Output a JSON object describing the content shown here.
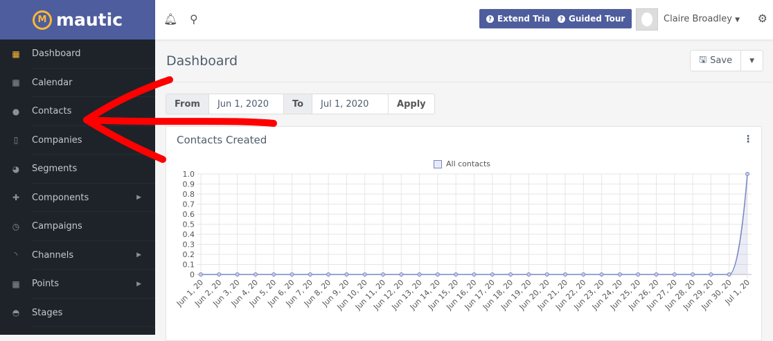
{
  "brand": {
    "name": "mautic"
  },
  "sidebar": {
    "items": [
      {
        "label": "Dashboard",
        "icon": "grid-icon",
        "glyph": "▦",
        "active": true
      },
      {
        "label": "Calendar",
        "icon": "calendar-icon",
        "glyph": "▦"
      },
      {
        "label": "Contacts",
        "icon": "user-icon",
        "glyph": "●"
      },
      {
        "label": "Companies",
        "icon": "building-icon",
        "glyph": "▯"
      },
      {
        "label": "Segments",
        "icon": "pie-chart-icon",
        "glyph": "◕"
      },
      {
        "label": "Components",
        "icon": "puzzle-icon",
        "glyph": "✚",
        "submenu": true
      },
      {
        "label": "Campaigns",
        "icon": "clock-icon",
        "glyph": "◷"
      },
      {
        "label": "Channels",
        "icon": "rss-icon",
        "glyph": "◝"
      },
      {
        "label": "Points",
        "icon": "calculator-icon",
        "glyph": "▦",
        "submenu": true
      },
      {
        "label": "Stages",
        "icon": "tachometer-icon",
        "glyph": "◓"
      }
    ]
  },
  "topbar": {
    "extend_trial": "Extend Trial",
    "guided_tour": "Guided Tour",
    "user_name": "Claire Broadley"
  },
  "page": {
    "title": "Dashboard",
    "save": "Save"
  },
  "filter": {
    "from_label": "From",
    "from_value": "Jun 1, 2020",
    "to_label": "To",
    "to_value": "Jul 1, 2020",
    "apply": "Apply"
  },
  "colors": {
    "accent": "#4e5d9d",
    "logo": "#fdb933",
    "sidebar": "#1e232a",
    "annotation": "#ff0000"
  },
  "chart_data": {
    "type": "line",
    "title": "Contacts Created",
    "legend": [
      "All contacts"
    ],
    "categories": [
      "Jun 1, 20",
      "Jun 2, 20",
      "Jun 3, 20",
      "Jun 4, 20",
      "Jun 5, 20",
      "Jun 6, 20",
      "Jun 7, 20",
      "Jun 8, 20",
      "Jun 9, 20",
      "Jun 10, 20",
      "Jun 11, 20",
      "Jun 12, 20",
      "Jun 13, 20",
      "Jun 14, 20",
      "Jun 15, 20",
      "Jun 16, 20",
      "Jun 17, 20",
      "Jun 18, 20",
      "Jun 19, 20",
      "Jun 20, 20",
      "Jun 21, 20",
      "Jun 22, 20",
      "Jun 23, 20",
      "Jun 24, 20",
      "Jun 25, 20",
      "Jun 26, 20",
      "Jun 27, 20",
      "Jun 28, 20",
      "Jun 29, 20",
      "Jun 30, 20",
      "Jul 1, 20"
    ],
    "series": [
      {
        "name": "All contacts",
        "values": [
          0,
          0,
          0,
          0,
          0,
          0,
          0,
          0,
          0,
          0,
          0,
          0,
          0,
          0,
          0,
          0,
          0,
          0,
          0,
          0,
          0,
          0,
          0,
          0,
          0,
          0,
          0,
          0,
          0,
          0,
          1
        ]
      }
    ],
    "yticks": [
      "0",
      "0.1",
      "0.2",
      "0.3",
      "0.4",
      "0.5",
      "0.6",
      "0.7",
      "0.8",
      "0.9",
      "1.0"
    ],
    "ylim": [
      0,
      1
    ],
    "grid": true,
    "legend_position": "top",
    "color": "#7a85c2"
  }
}
